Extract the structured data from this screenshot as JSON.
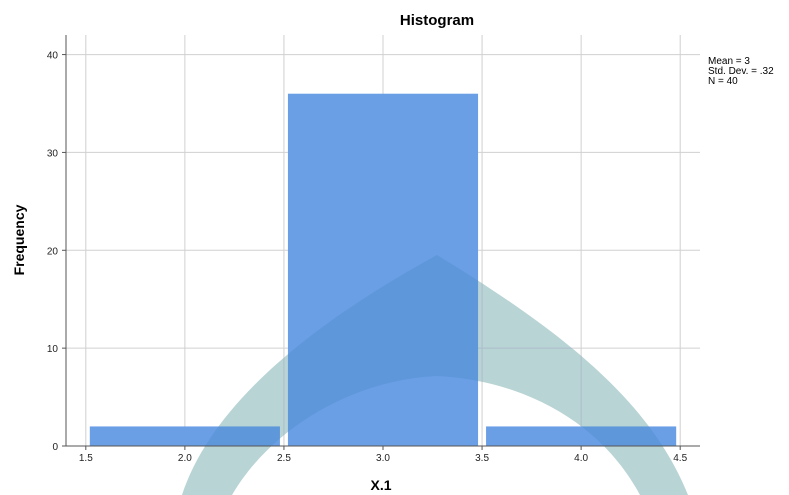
{
  "chart_data": {
    "type": "bar",
    "title": "Histogram",
    "xlabel": "X.1",
    "ylabel": "Frequency",
    "bins": [
      {
        "from": 1.5,
        "to": 2.5,
        "count": 2
      },
      {
        "from": 2.5,
        "to": 3.5,
        "count": 36
      },
      {
        "from": 3.5,
        "to": 4.5,
        "count": 2
      }
    ],
    "xlim": [
      1.4,
      4.6
    ],
    "ylim": [
      0,
      42
    ],
    "x_ticks": [
      "1.5",
      "2.0",
      "2.5",
      "3.0",
      "3.5",
      "4.0",
      "4.5"
    ],
    "y_ticks": [
      "0",
      "10",
      "20",
      "30",
      "40"
    ],
    "grid": true,
    "bar_color": "#6a9fe6",
    "stats": [
      "Mean = 3",
      "Std. Dev. = .32",
      "N = 40"
    ],
    "watermark_color": "#e3f0df"
  }
}
